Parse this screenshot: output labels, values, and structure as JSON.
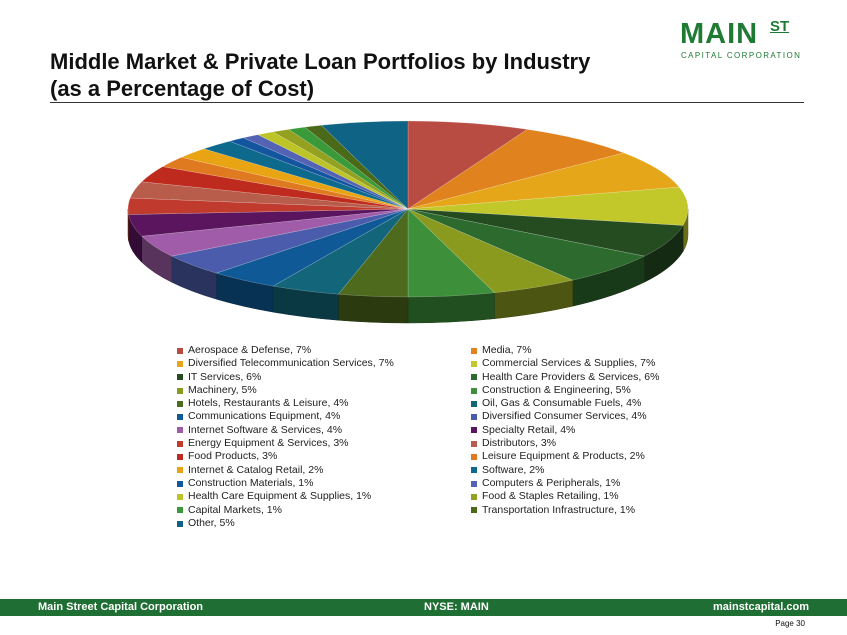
{
  "header": {
    "title_line1": "Middle Market & Private Loan Portfolios by Industry",
    "title_line2": "(as a Percentage of Cost)"
  },
  "logo": {
    "main": "MAIN",
    "st": "ST",
    "sub": "CAPITAL CORPORATION"
  },
  "chart_data": {
    "type": "pie",
    "title": "",
    "slices": [
      {
        "label": "Aerospace & Defense",
        "value": 7,
        "color": "#b84c43"
      },
      {
        "label": "Media",
        "value": 7,
        "color": "#e0821e"
      },
      {
        "label": "Diversified Telecommunication Services",
        "value": 7,
        "color": "#e6a619"
      },
      {
        "label": "Commercial Services & Supplies",
        "value": 7,
        "color": "#c2c82a"
      },
      {
        "label": "IT Services",
        "value": 6,
        "color": "#254c21"
      },
      {
        "label": "Health Care Providers & Services",
        "value": 6,
        "color": "#2d6a2d"
      },
      {
        "label": "Machinery",
        "value": 5,
        "color": "#8a9a1e"
      },
      {
        "label": "Construction & Engineering",
        "value": 5,
        "color": "#3d8f3a"
      },
      {
        "label": "Hotels, Restaurants & Leisure",
        "value": 4,
        "color": "#4e6a1c"
      },
      {
        "label": "Oil, Gas & Consumable Fuels",
        "value": 4,
        "color": "#13657a"
      },
      {
        "label": "Communications Equipment",
        "value": 4,
        "color": "#0f5a96"
      },
      {
        "label": "Diversified Consumer Services",
        "value": 4,
        "color": "#4a5cab"
      },
      {
        "label": "Internet Software & Services",
        "value": 4,
        "color": "#a05ca8"
      },
      {
        "label": "Specialty Retail",
        "value": 4,
        "color": "#5a155e"
      },
      {
        "label": "Energy Equipment & Services",
        "value": 3,
        "color": "#c03a2d"
      },
      {
        "label": "Distributors",
        "value": 3,
        "color": "#b85c4c"
      },
      {
        "label": "Food Products",
        "value": 3,
        "color": "#bf2a1e"
      },
      {
        "label": "Leisure Equipment & Products",
        "value": 2,
        "color": "#e07a20"
      },
      {
        "label": "Internet & Catalog Retail",
        "value": 2,
        "color": "#e8a412"
      },
      {
        "label": "Software",
        "value": 2,
        "color": "#0e6a8c"
      },
      {
        "label": "Construction Materials",
        "value": 1,
        "color": "#1455a0"
      },
      {
        "label": "Computers & Peripherals",
        "value": 1,
        "color": "#5462b4"
      },
      {
        "label": "Health Care Equipment & Supplies",
        "value": 1,
        "color": "#bcc428"
      },
      {
        "label": "Food & Staples Retailing",
        "value": 1,
        "color": "#94a020"
      },
      {
        "label": "Capital Markets",
        "value": 1,
        "color": "#3a9a3a"
      },
      {
        "label": "Transportation Infrastructure",
        "value": 1,
        "color": "#4a6a1a"
      },
      {
        "label": "Other",
        "value": 5,
        "color": "#0f6485"
      }
    ],
    "legend": [
      "Aerospace & Defense, 7%",
      "Media, 7%",
      "Diversified Telecommunication Services, 7%",
      "Commercial Services & Supplies, 7%",
      "IT Services, 6%",
      "Health Care Providers & Services, 6%",
      "Machinery, 5%",
      "Construction & Engineering, 5%",
      "Hotels, Restaurants & Leisure, 4%",
      "Oil, Gas & Consumable Fuels, 4%",
      "Communications Equipment, 4%",
      "Diversified Consumer Services, 4%",
      "Internet Software & Services, 4%",
      "Specialty Retail, 4%",
      "Energy Equipment & Services, 3%",
      "Distributors, 3%",
      "Food Products, 3%",
      "Leisure Equipment & Products, 2%",
      "Internet & Catalog Retail, 2%",
      "Software, 2%",
      "Construction Materials, 1%",
      "Computers & Peripherals, 1%",
      "Health Care Equipment & Supplies, 1%",
      "Food & Staples Retailing, 1%",
      "Capital Markets, 1%",
      "Transportation Infrastructure, 1%",
      "Other, 5%"
    ],
    "legend_placement": "bottom",
    "style": "3d-tilted"
  },
  "footer": {
    "company": "Main Street Capital Corporation",
    "ticker": "NYSE: MAIN",
    "website": "mainstcapital.com",
    "page": "Page  30"
  }
}
